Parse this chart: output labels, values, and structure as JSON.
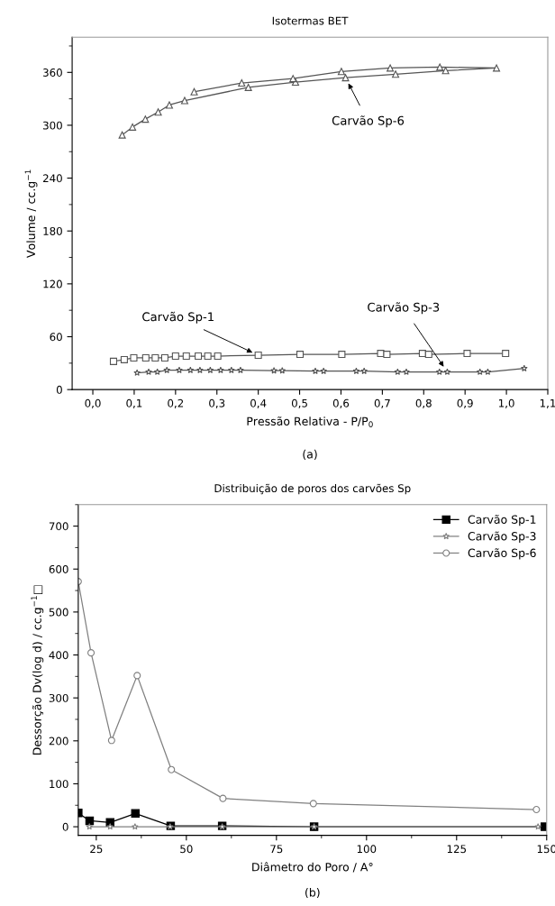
{
  "chart_data": [
    {
      "type": "line",
      "title": "Isotermas BET",
      "xlabel": "Pressão Relativa - P/P$_{0}$",
      "ylabel": "Volume / cc.g$^{−1}$",
      "xlim": [
        -0.05,
        1.1
      ],
      "ylim": [
        0,
        400
      ],
      "xticks": [
        {
          "value": 0.0,
          "label": "0,0"
        },
        {
          "value": 0.1,
          "label": "0,1"
        },
        {
          "value": 0.2,
          "label": "0,2"
        },
        {
          "value": 0.3,
          "label": "0,3"
        },
        {
          "value": 0.4,
          "label": "0,4"
        },
        {
          "value": 0.5,
          "label": "0,5"
        },
        {
          "value": 0.6,
          "label": "0,6"
        },
        {
          "value": 0.7,
          "label": "0,7"
        },
        {
          "value": 0.8,
          "label": "0,8"
        },
        {
          "value": 0.9,
          "label": "0,9"
        },
        {
          "value": 1.0,
          "label": "1,0"
        },
        {
          "value": 1.1,
          "label": "1,1"
        }
      ],
      "yticks": [
        0,
        60,
        120,
        180,
        240,
        300,
        360
      ],
      "grid": false,
      "legend": false,
      "series": [
        {
          "color": "#555555",
          "marker": "square",
          "x": [
            0.05,
            0.076,
            0.099,
            0.128,
            0.151,
            0.174,
            0.2,
            0.226,
            0.255,
            0.278,
            0.302,
            0.4,
            0.501,
            0.602,
            0.696,
            0.711,
            0.797,
            0.812,
            0.905,
            0.998
          ],
          "values": [
            32,
            34,
            36,
            36,
            36,
            36,
            38,
            38,
            38,
            38,
            38,
            39,
            40,
            40,
            41,
            40,
            41,
            40,
            41,
            41
          ]
        },
        {
          "color": "#555555",
          "marker": "star",
          "x": [
            0.107,
            0.135,
            0.156,
            0.179,
            0.209,
            0.236,
            0.259,
            0.284,
            0.309,
            0.335,
            0.357,
            0.438,
            0.458,
            0.538,
            0.558,
            0.637,
            0.656,
            0.737,
            0.758,
            0.838,
            0.857,
            0.936,
            0.955,
            1.043
          ],
          "values": [
            19,
            20,
            20,
            22,
            22,
            22,
            22,
            22,
            22,
            22,
            22,
            21.5,
            21.5,
            21,
            21,
            21,
            21,
            20,
            20,
            20,
            20,
            20,
            20,
            24
          ]
        },
        {
          "color": "#555555",
          "marker": "triangle",
          "x": [
            0.071,
            0.096,
            0.127,
            0.158,
            0.185,
            0.222,
            0.376,
            0.49,
            0.611,
            0.732,
            0.853,
            0.976,
            0.839,
            0.719,
            0.601,
            0.484,
            0.36,
            0.245
          ],
          "values": [
            289,
            298,
            307,
            315,
            323,
            328,
            343,
            349,
            354,
            358,
            362,
            365,
            366,
            365,
            361,
            353,
            348,
            338
          ]
        }
      ],
      "annotations": [
        "(a)",
        {
          "text": "Carvão Sp-1",
          "x": 0.4,
          "y": 39
        },
        {
          "text": "Carvão Sp-3",
          "x": 0.857,
          "y": 20
        },
        {
          "text": "Carvão Sp-6",
          "x": 0.611,
          "y": 354
        }
      ]
    },
    {
      "type": "line",
      "title": "Distribuição de poros dos carvões Sp",
      "xlabel": "Diâmetro do Poro / A°",
      "ylabel": "Dessorção Dv(log d) / cc.g$^{−1}$□",
      "xlim": [
        20,
        150
      ],
      "ylim": [
        -20,
        750
      ],
      "xticks": [
        25,
        50,
        75,
        100,
        125,
        150
      ],
      "yticks": [
        0,
        100,
        200,
        300,
        400,
        500,
        600,
        700
      ],
      "grid": false,
      "legend": "top right",
      "series": [
        {
          "name": "Carvão Sp-1",
          "color": "#000000",
          "marker": "square",
          "x": [
            20,
            23.15,
            28.85,
            35.85,
            45.65,
            59.95,
            85.45,
            149.5
          ],
          "values": [
            32,
            14,
            10,
            31,
            2,
            2,
            0,
            0
          ]
        },
        {
          "name": "Carvão Sp-3",
          "color": "#808080",
          "marker": "star",
          "x": [
            23.1,
            28.85,
            35.75,
            45.5,
            59.95,
            85.45,
            147.6
          ],
          "values": [
            0,
            0,
            0,
            0,
            0,
            0,
            0
          ]
        },
        {
          "name": "Carvão Sp-6",
          "color": "#808080",
          "marker": "circle",
          "x": [
            20,
            23.55,
            29.25,
            36.35,
            45.85,
            60.15,
            85.25,
            147.15
          ],
          "values": [
            571,
            405,
            201,
            352,
            133,
            66,
            54,
            40
          ]
        }
      ],
      "annotations": [
        "(b)"
      ]
    }
  ]
}
